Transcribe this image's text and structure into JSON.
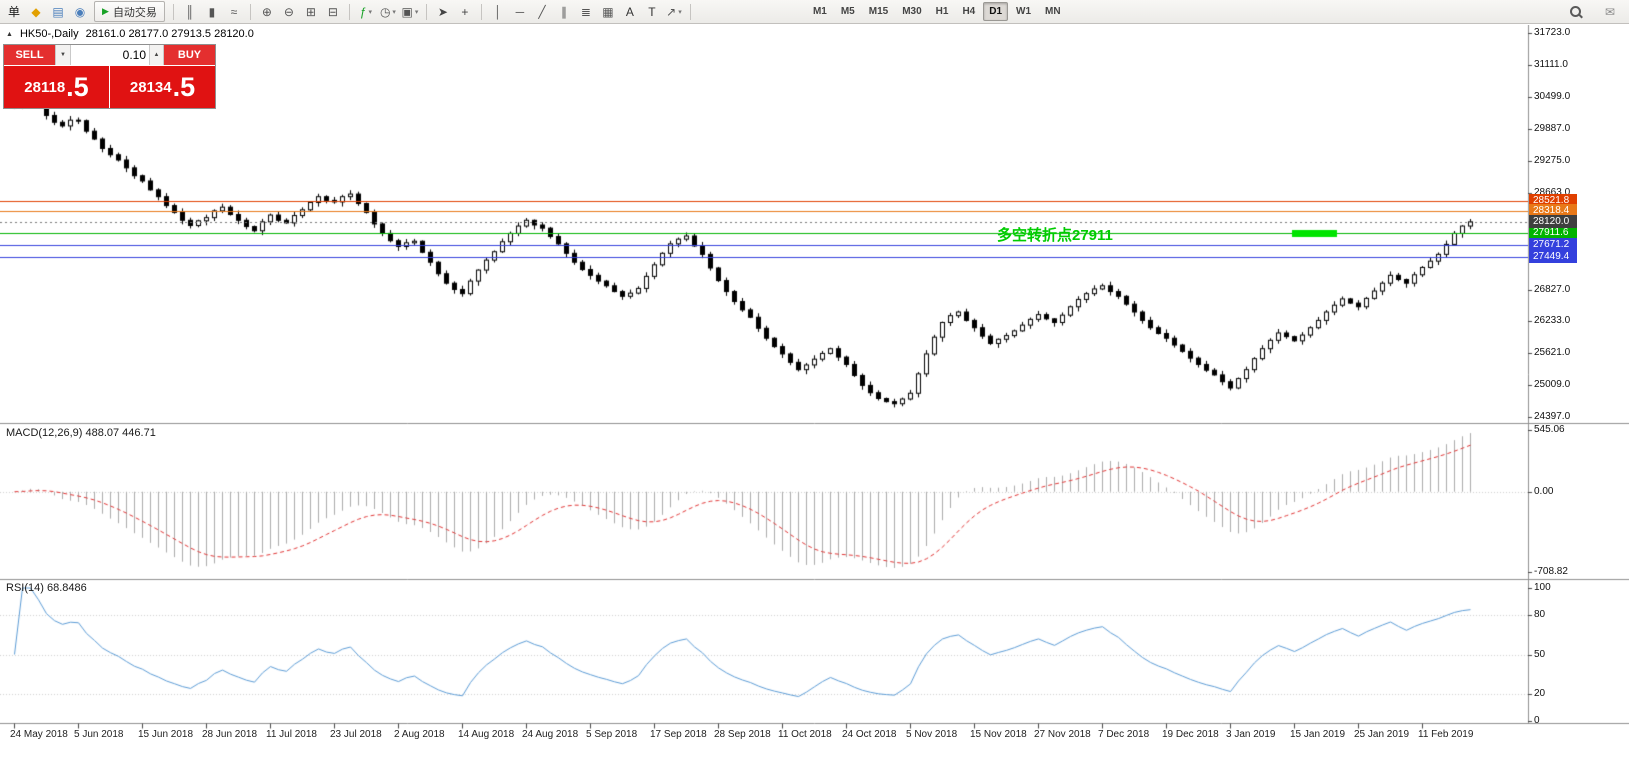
{
  "header": {
    "icon_glyph": "▲",
    "symbol": "HK50-,Daily",
    "ohlc": "28161.0 28177.0 27913.5 28120.0"
  },
  "toolbar": {
    "caret_glyph": "▾",
    "items": [
      {
        "type": "text",
        "name": "orders-menu-label",
        "text": "单"
      },
      {
        "type": "icon",
        "name": "new-order-icon",
        "glyph": "◆",
        "color": "#e2a000"
      },
      {
        "type": "icon",
        "name": "market-watch-icon",
        "glyph": "▤",
        "color": "#4a7ebb"
      },
      {
        "type": "icon",
        "name": "data-window-icon",
        "glyph": "◉",
        "color": "#4a7ebb"
      },
      {
        "type": "button",
        "name": "autotrade-button",
        "glyph": "▶",
        "glyph_color": "#18a126",
        "text": "自动交易"
      },
      {
        "type": "sep"
      },
      {
        "type": "icon",
        "name": "bar-chart-icon",
        "glyph": "║",
        "color": "#555555"
      },
      {
        "type": "icon",
        "name": "candlestick-chart-icon",
        "glyph": "▮",
        "color": "#555555"
      },
      {
        "type": "icon",
        "name": "line-chart-icon",
        "glyph": "≈",
        "color": "#555555"
      },
      {
        "type": "sep"
      },
      {
        "type": "icon",
        "name": "zoom-in-icon",
        "glyph": "⊕",
        "color": "#555555"
      },
      {
        "type": "icon",
        "name": "zoom-out-icon",
        "glyph": "⊖",
        "color": "#555555"
      },
      {
        "type": "icon",
        "name": "tile-windows-icon",
        "glyph": "⊞",
        "color": "#555555"
      },
      {
        "type": "icon",
        "name": "arrange-windows-icon",
        "glyph": "⊟",
        "color": "#555555"
      },
      {
        "type": "sep"
      },
      {
        "type": "icon",
        "name": "indicators-icon",
        "glyph": "ƒ",
        "color": "#18a126",
        "caret": true
      },
      {
        "type": "icon",
        "name": "periods-icon",
        "glyph": "◷",
        "color": "#555555",
        "caret": true
      },
      {
        "type": "icon",
        "name": "templates-icon",
        "glyph": "▣",
        "color": "#555555",
        "caret": true
      },
      {
        "type": "sep"
      },
      {
        "type": "icon",
        "name": "cursor-icon",
        "glyph": "➤",
        "color": "#444444"
      },
      {
        "type": "icon",
        "name": "crosshair-icon",
        "glyph": "+",
        "color": "#444444"
      },
      {
        "type": "sep"
      },
      {
        "type": "icon",
        "name": "vertical-line-icon",
        "glyph": "│",
        "color": "#555555"
      },
      {
        "type": "icon",
        "name": "horizontal-line-icon",
        "glyph": "─",
        "color": "#555555"
      },
      {
        "type": "icon",
        "name": "trendline-icon",
        "glyph": "╱",
        "color": "#555555"
      },
      {
        "type": "icon",
        "name": "equidistant-channel-icon",
        "glyph": "∥",
        "color": "#555555"
      },
      {
        "type": "icon",
        "name": "fibonacci-icon",
        "glyph": "≣",
        "color": "#555555"
      },
      {
        "type": "icon",
        "name": "cycle-lines-icon",
        "glyph": "▦",
        "color": "#555555"
      },
      {
        "type": "icon",
        "name": "text-icon",
        "glyph": "A",
        "color": "#333333"
      },
      {
        "type": "icon",
        "name": "text-label-icon",
        "glyph": "T",
        "color": "#333333"
      },
      {
        "type": "icon",
        "name": "arrow-tools-icon",
        "glyph": "↗",
        "color": "#555555",
        "caret": true
      },
      {
        "type": "sep"
      }
    ],
    "timeframes": [
      {
        "label": "M1"
      },
      {
        "label": "M5"
      },
      {
        "label": "M15"
      },
      {
        "label": "M30"
      },
      {
        "label": "H1"
      },
      {
        "label": "H4"
      },
      {
        "label": "D1",
        "active": true
      },
      {
        "label": "W1"
      },
      {
        "label": "MN"
      }
    ],
    "right_items": [
      {
        "name": "search-icon",
        "shape": "magnifier"
      },
      {
        "name": "mail-icon",
        "glyph": "✉",
        "color": "#8a8a8a"
      }
    ]
  },
  "one_click": {
    "sell_label": "SELL",
    "buy_label": "BUY",
    "lot": "0.10",
    "sell_main": "28118",
    "sell_big": ".5",
    "buy_main": "28134",
    "buy_big": ".5",
    "dropdown_glyph": "▼",
    "spinner_glyph": "▲",
    "panel_red": "#e01212"
  },
  "chart_data": {
    "type": "candlestick",
    "symbol": "HK50-",
    "period": "Daily",
    "title": "HK50-,Daily",
    "last_ohlc": {
      "open": "28161.0",
      "high": "28177.0",
      "low": "27913.5",
      "close": "28120.0"
    },
    "candle_color": "#000000",
    "price_axis": {
      "top_value": 31723.0,
      "bottom_value": 24397.0,
      "ticks": [
        "31723.0",
        "31111.0",
        "30499.0",
        "29887.0",
        "29275.0",
        "28663.0",
        "26827.0",
        "26233.0",
        "25621.0",
        "25009.0",
        "24397.0"
      ]
    },
    "levels": [
      {
        "label": "28521.8",
        "price": 28521.8,
        "color": "#e04000"
      },
      {
        "label": "28318.4",
        "price": 28318.4,
        "color": "#e87818"
      },
      {
        "label": "27911.6",
        "price": 27911.6,
        "color": "#00b400"
      },
      {
        "label": "27671.2",
        "price": 27671.2,
        "color": "#3440dd"
      },
      {
        "label": "27449.4",
        "price": 27449.4,
        "color": "#3440dd"
      }
    ],
    "current_price": {
      "label": "28120.0",
      "price": 28120.0,
      "color": "#3f3f3f"
    },
    "annotation": {
      "text": "多空转折点27911",
      "color": "#00cc00"
    },
    "highlight_segment": {
      "from_index": 160,
      "to_index": 165,
      "price": 27911.6,
      "color": "#00e400"
    },
    "x_labels": [
      "24 May 2018",
      "5 Jun 2018",
      "15 Jun 2018",
      "28 Jun 2018",
      "11 Jul 2018",
      "23 Jul 2018",
      "2 Aug 2018",
      "14 Aug 2018",
      "24 Aug 2018",
      "5 Sep 2018",
      "17 Sep 2018",
      "28 Sep 2018",
      "11 Oct 2018",
      "24 Oct 2018",
      "5 Nov 2018",
      "15 Nov 2018",
      "27 Nov 2018",
      "7 Dec 2018",
      "19 Dec 2018",
      "3 Jan 2019",
      "15 Jan 2019",
      "25 Jan 2019",
      "11 Feb 2019"
    ],
    "candles_per_label": 8,
    "first_open": 30300,
    "closes": [
      30350,
      30490,
      30550,
      30380,
      30150,
      30020,
      29950,
      30060,
      30050,
      29850,
      29700,
      29520,
      29400,
      29300,
      29150,
      29000,
      28900,
      28730,
      28600,
      28430,
      28300,
      28150,
      28050,
      28140,
      28200,
      28330,
      28400,
      28260,
      28150,
      28030,
      27950,
      28120,
      28250,
      28150,
      28100,
      28240,
      28350,
      28490,
      28600,
      28530,
      28500,
      28600,
      28650,
      28470,
      28300,
      28080,
      27900,
      27760,
      27650,
      27720,
      27750,
      27540,
      27350,
      27130,
      26950,
      26830,
      26750,
      26990,
      27200,
      27390,
      27550,
      27740,
      27900,
      28040,
      28150,
      28060,
      28000,
      27840,
      27700,
      27520,
      27350,
      27210,
      27100,
      26990,
      26900,
      26790,
      26700,
      26760,
      26850,
      27080,
      27300,
      27520,
      27700,
      27790,
      27850,
      27660,
      27500,
      27240,
      27000,
      26790,
      26600,
      26440,
      26300,
      26090,
      25900,
      25740,
      25600,
      25440,
      25300,
      25390,
      25500,
      25610,
      25700,
      25540,
      25400,
      25190,
      25000,
      24860,
      24750,
      24690,
      24650,
      24740,
      24850,
      25220,
      25600,
      25920,
      26200,
      26330,
      26400,
      26240,
      26100,
      25940,
      25800,
      25880,
      25950,
      26040,
      26150,
      26260,
      26350,
      26270,
      26200,
      26340,
      26500,
      26640,
      26750,
      26840,
      26900,
      26790,
      26700,
      26550,
      26400,
      26240,
      26100,
      25990,
      25900,
      25770,
      25650,
      25520,
      25400,
      25290,
      25200,
      25070,
      24950,
      25130,
      25300,
      25510,
      25700,
      25860,
      26000,
      25930,
      25850,
      25960,
      26100,
      26240,
      26400,
      26530,
      26650,
      26570,
      26500,
      26660,
      26800,
      26950,
      27100,
      27020,
      26950,
      27110,
      27250,
      27370,
      27500,
      27690,
      27900,
      28040,
      28120
    ],
    "macd": {
      "label": "MACD(12,26,9) 488.07 446.71",
      "fast": 12,
      "slow": 26,
      "signal_period": 9,
      "value": 488.07,
      "signal_value": 446.71,
      "ticks": [
        "545.06",
        "0.00",
        "-708.82"
      ],
      "top_tick": 545.06,
      "bottom_tick": -708.82,
      "histogram_color": "#ababab",
      "signal_color": "#e03333"
    },
    "rsi": {
      "label": "RSI(14) 68.8486",
      "period": 14,
      "value": 68.8486,
      "ticks": [
        100,
        80,
        50,
        20,
        0
      ],
      "level_lines": [
        80,
        50,
        20
      ],
      "line_color": "#5b9bd5"
    }
  }
}
